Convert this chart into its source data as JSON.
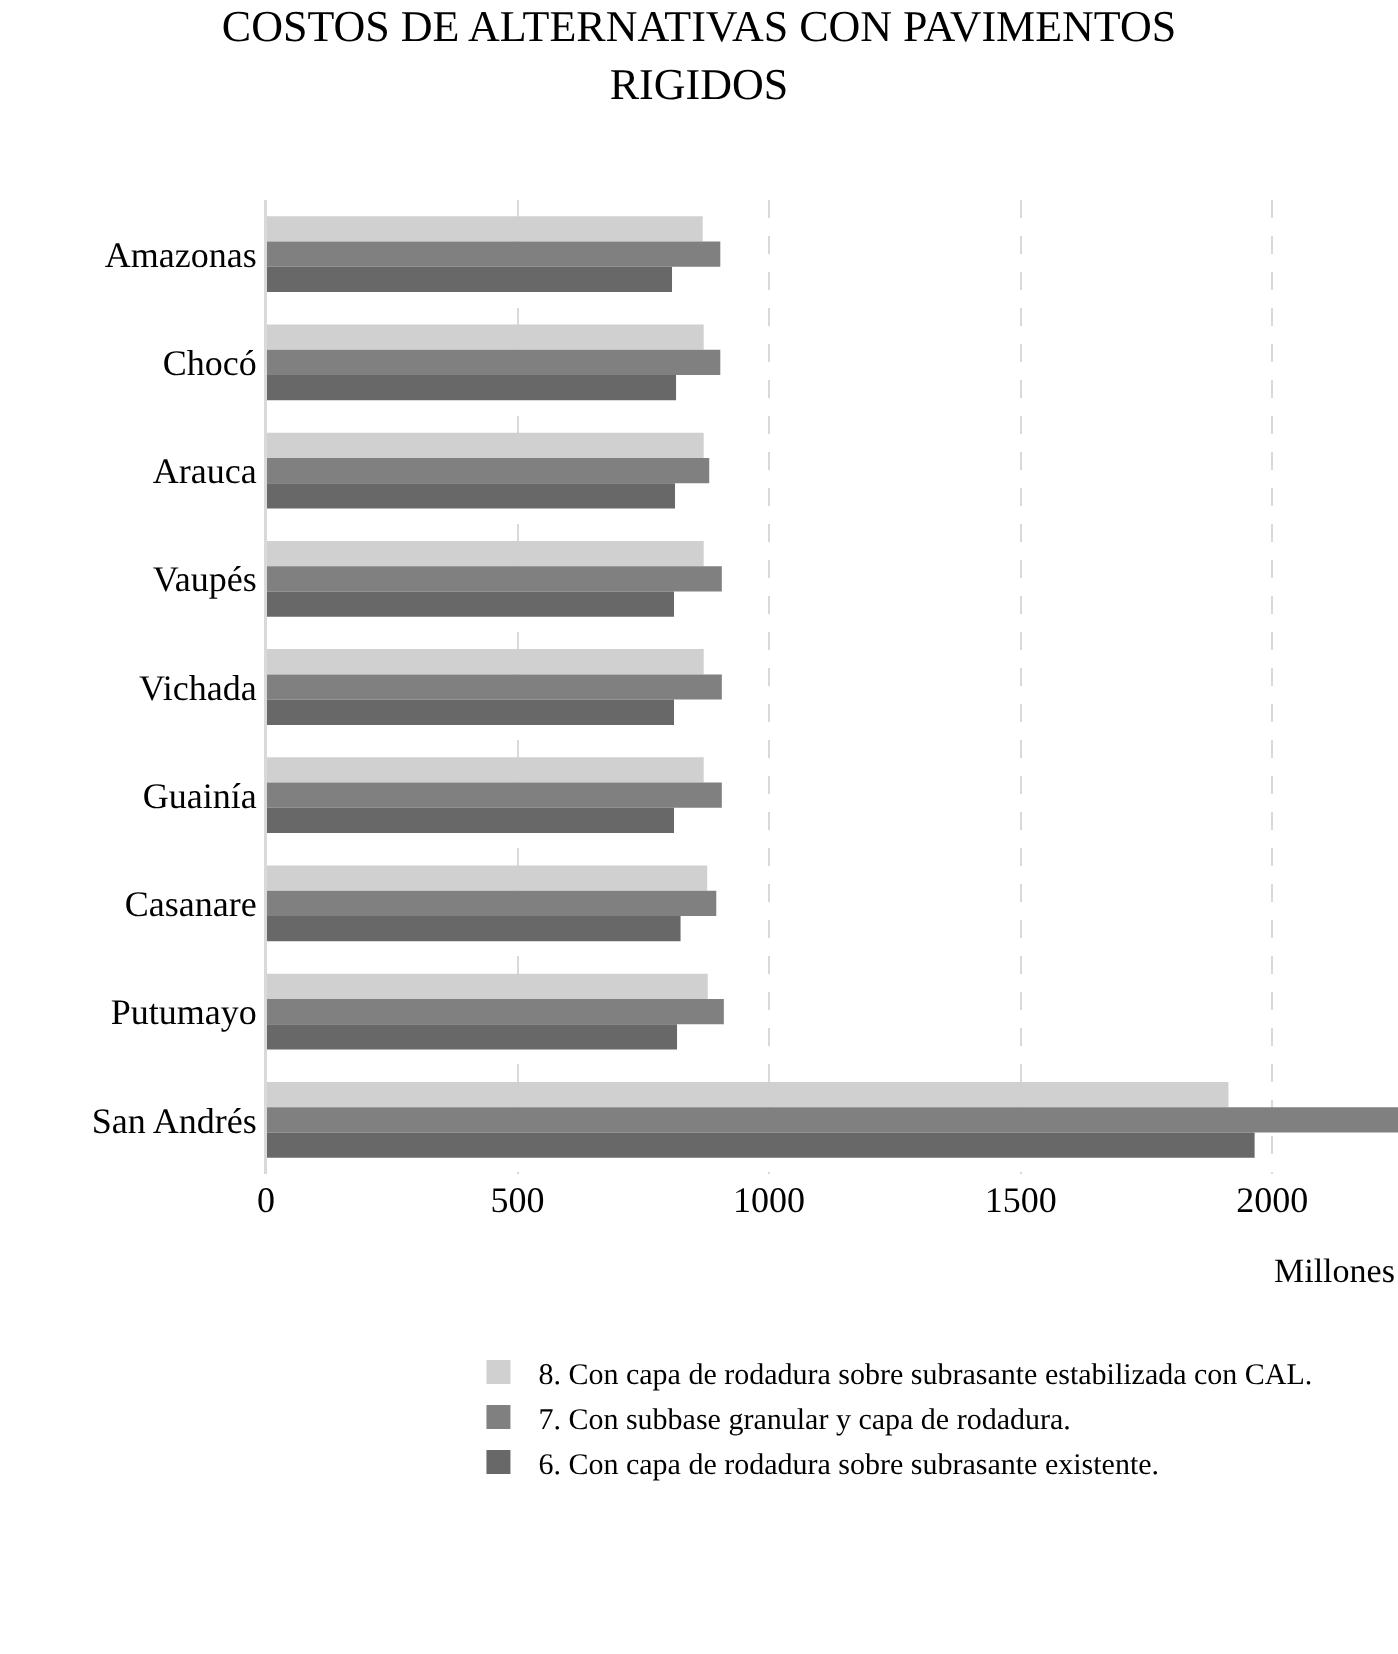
{
  "chart_data": {
    "type": "bar",
    "orientation": "horizontal",
    "title": "COSTOS DE ALTERNATIVAS CON PAVIMENTOS RIGIDOS",
    "xlabel": "Millones",
    "categories": [
      "Amazonas",
      "Chocó",
      "Arauca",
      "Vaupés",
      "Vichada",
      "Guainía",
      "Casanare",
      "Putumayo",
      "San Andrés"
    ],
    "series": [
      {
        "name": "8. Con capa de rodadura sobre subrasante estabilizada con CAL.",
        "color": "#d0d0d0",
        "values": [
          868,
          870,
          870,
          870,
          870,
          870,
          877,
          878,
          1913
        ]
      },
      {
        "name": "7. Con subbase granular y capa de rodadura.",
        "color": "#808080",
        "values": [
          903,
          903,
          881,
          906,
          906,
          906,
          895,
          910,
          2250
        ]
      },
      {
        "name": "6. Con capa de rodadura sobre subrasante existente.",
        "color": "#686868",
        "values": [
          807,
          815,
          813,
          811,
          811,
          811,
          824,
          817,
          1965
        ]
      }
    ],
    "xlim": [
      0,
      2250
    ],
    "xticks": [
      0,
      500,
      1000,
      1500,
      2000
    ],
    "grid": "x",
    "legend": "bottom"
  }
}
